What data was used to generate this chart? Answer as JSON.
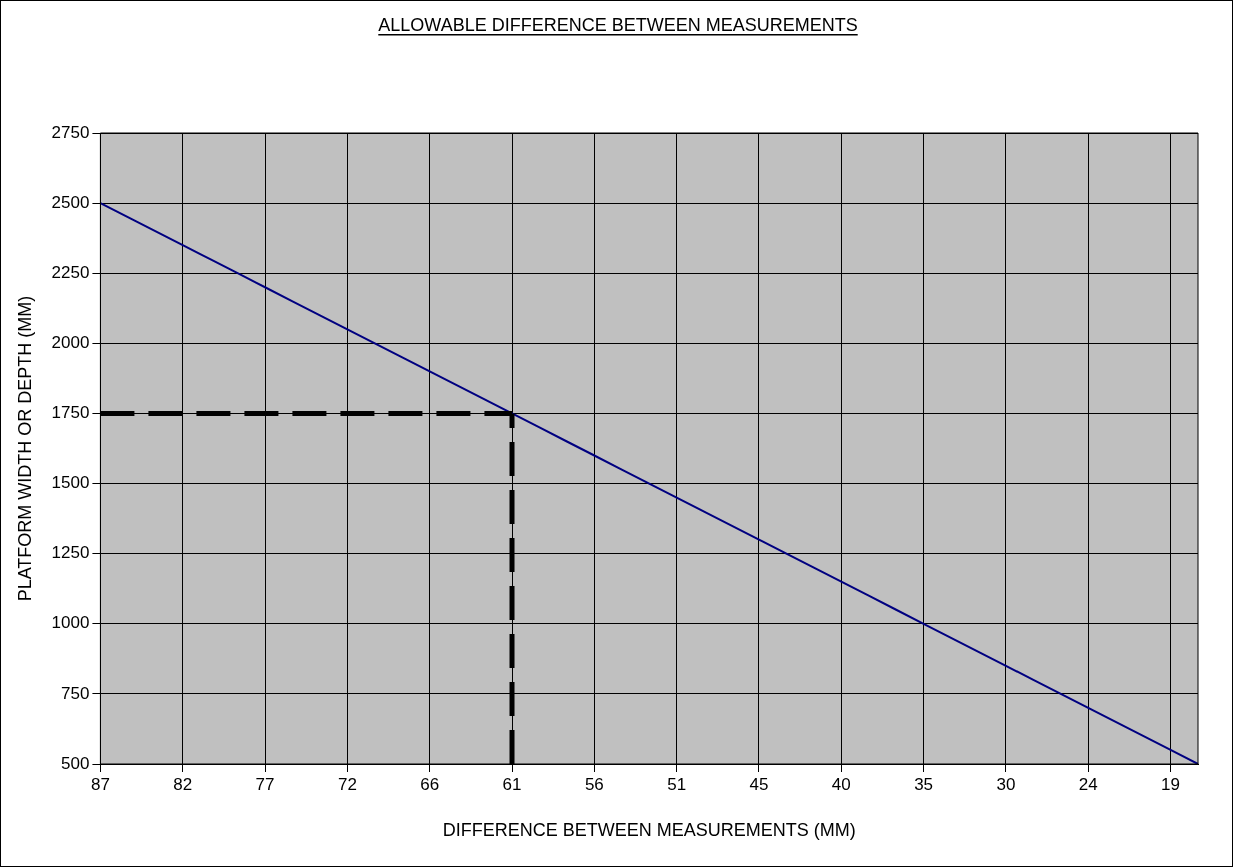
{
  "chart_data": {
    "type": "line",
    "title": "ALLOWABLE DIFFERENCE BETWEEN MEASUREMENTS",
    "xlabel": "DIFFERENCE BETWEEN MEASUREMENTS (MM)",
    "ylabel": "PLATFORM WIDTH OR DEPTH (MM)",
    "categories": [
      "87",
      null,
      null,
      "82",
      null,
      null,
      "77",
      null,
      null,
      "72",
      null,
      null,
      "66",
      null,
      null,
      "61",
      null,
      null,
      "56",
      null,
      null,
      "51",
      null,
      null,
      "45",
      null,
      null,
      "40",
      null,
      null,
      "35",
      null,
      null,
      "30",
      null,
      null,
      "24",
      null,
      null,
      "19",
      null
    ],
    "series": [
      {
        "color": "#000080",
        "values": [
          2500,
          2450,
          2400,
          2350,
          2300,
          2250,
          2200,
          2150,
          2100,
          2050,
          2000,
          1950,
          1900,
          1850,
          1800,
          1750,
          1700,
          1650,
          1600,
          1550,
          1500,
          1450,
          1400,
          1350,
          1300,
          1250,
          1200,
          1150,
          1100,
          1050,
          1000,
          950,
          900,
          850,
          800,
          750,
          700,
          650,
          600,
          550,
          500
        ]
      }
    ],
    "ylim": [
      500,
      2750
    ],
    "yticks": [
      500,
      750,
      1000,
      1250,
      1500,
      1750,
      2000,
      2250,
      2500,
      2750
    ],
    "grid": true,
    "legend": false,
    "marker": "none",
    "line_style": "solid",
    "ref_lines": [
      {
        "axis": "y",
        "value": 1750,
        "color": "#000000",
        "line_style": "dashed"
      },
      {
        "axis": "x",
        "value": "61",
        "color": "#000000",
        "line_style": "dashed"
      }
    ]
  }
}
